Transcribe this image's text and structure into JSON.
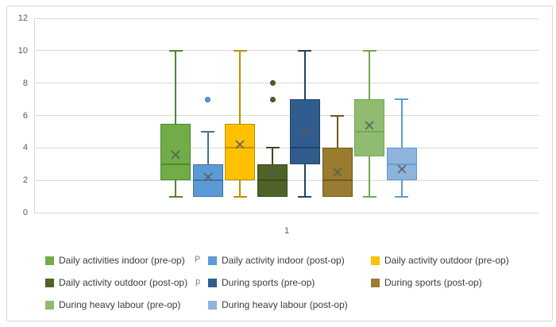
{
  "chart_data": {
    "type": "boxplot",
    "title": "",
    "x_tick_label": "1",
    "ylim": [
      0,
      12
    ],
    "yticks": [
      0,
      2,
      4,
      6,
      8,
      10,
      12
    ],
    "grid": true,
    "legend_position": "bottom",
    "series": [
      {
        "name": "Daily activities indoor (pre-op)",
        "fill": "#70AD47",
        "border": "#548235",
        "min": 1,
        "q1": 2,
        "median": 3,
        "q3": 5.5,
        "max": 10,
        "mean": 3.6,
        "outliers": []
      },
      {
        "name": "Daily activity indoor (post-op)",
        "fill": "#5B9BD5",
        "border": "#41719C",
        "min": 1,
        "q1": 1,
        "median": 2,
        "q3": 3,
        "max": 5,
        "mean": 2.2,
        "outliers": [
          7
        ]
      },
      {
        "name": "Daily activity outdoor (pre-op)",
        "fill": "#FFC000",
        "border": "#BF9000",
        "min": 1,
        "q1": 2,
        "median": 4,
        "q3": 5.5,
        "max": 10,
        "mean": 4.2,
        "outliers": []
      },
      {
        "name": "Daily activity outdoor (post-op)",
        "fill": "#4F6228",
        "border": "#3A4A1E",
        "min": 1,
        "q1": 1,
        "median": 2,
        "q3": 3,
        "max": 4,
        "mean": 2.4,
        "outliers": [
          7,
          8
        ]
      },
      {
        "name": "During sports (pre-op)",
        "fill": "#305D8D",
        "border": "#1F4265",
        "min": 1,
        "q1": 3,
        "median": 4,
        "q3": 7,
        "max": 10,
        "mean": 5.0,
        "outliers": []
      },
      {
        "name": "During sports (post-op)",
        "fill": "#9A7B2F",
        "border": "#6F5921",
        "min": 1,
        "q1": 1,
        "median": 2,
        "q3": 4,
        "max": 6,
        "mean": 2.5,
        "outliers": []
      },
      {
        "name": "During heavy labour (pre-op)",
        "fill": "#90BC71",
        "border": "#6FA84C",
        "min": 1,
        "q1": 3.5,
        "median": 5,
        "q3": 7,
        "max": 10,
        "mean": 5.4,
        "outliers": []
      },
      {
        "name": "During heavy labour (post-op)",
        "fill": "#8FB4DC",
        "border": "#5B9BD5",
        "min": 1,
        "q1": 2,
        "median": 3,
        "q3": 4,
        "max": 7,
        "mean": 2.7,
        "outliers": []
      }
    ]
  },
  "axis": {
    "y_tick_labels": [
      "0",
      "2",
      "4",
      "6",
      "8",
      "10",
      "12"
    ]
  },
  "legend": {
    "artifacts": {
      "row1": "P",
      "row2": "p"
    }
  },
  "colors": {
    "gridline": "#D9D9D9",
    "axis_text": "#595959",
    "mean_marker": "#595959",
    "frame_border": "#D6D6D6"
  }
}
